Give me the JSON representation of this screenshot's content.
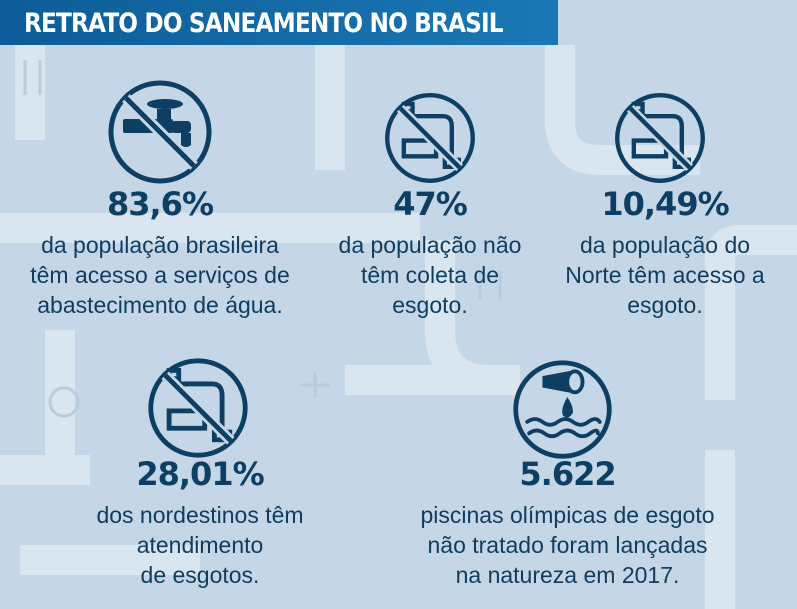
{
  "header": {
    "title": "RETRATO DO SANEAMENTO NO BRASIL"
  },
  "stats": [
    {
      "value": "83,6%",
      "lines": [
        "da população brasileira",
        "têm acesso a serviços de",
        "abastecimento de água."
      ]
    },
    {
      "value": "47%",
      "lines": [
        "da população não",
        "têm coleta de",
        "esgoto."
      ]
    },
    {
      "value": "10,49%",
      "lines": [
        "da população do",
        "Norte têm acesso a",
        "esgoto."
      ]
    },
    {
      "value": "28,01%",
      "lines": [
        "dos nordestinos têm",
        "atendimento",
        "de esgotos."
      ]
    },
    {
      "value": "5.622",
      "lines": [
        "piscinas olímpicas de esgoto",
        "não tratado foram lançadas",
        "na natureza em 2017."
      ]
    }
  ],
  "icons": [
    "no-faucet-icon",
    "no-sewer-pipe-icon",
    "no-sewer-pipe-icon",
    "no-sewer-pipe-icon",
    "sewage-discharge-icon"
  ],
  "colors": {
    "header": "#0d5c97",
    "text": "#0d3e63",
    "background": "#c5d7e6",
    "pipes": "#d8e5ef"
  }
}
